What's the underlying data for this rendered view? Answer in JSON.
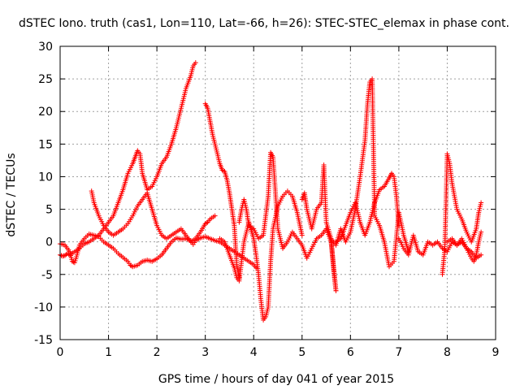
{
  "chart_data": {
    "type": "scatter",
    "title": "dSTEC Iono. truth (cas1, Lon=110, Lat=-66, h=26): STEC-STEC_elemax in phase cont.",
    "xlabel": "GPS time / hours of day 041 of year 2015",
    "ylabel": "dSTEC  / TECUs",
    "xlim": [
      0,
      9
    ],
    "ylim": [
      -15,
      30
    ],
    "xticks": [
      "0",
      "1",
      "2",
      "3",
      "4",
      "5",
      "6",
      "7",
      "8",
      "9"
    ],
    "yticks": [
      "-15",
      "-10",
      "-5",
      "0",
      "5",
      "10",
      "15",
      "20",
      "25",
      "30"
    ],
    "grid": true,
    "marker": "+",
    "color": "#ff0000",
    "series": [
      {
        "x": [
          0.0,
          0.1,
          0.2,
          0.25,
          0.3,
          0.35,
          0.4,
          0.5,
          0.6,
          0.7,
          0.8,
          0.9,
          1.0,
          1.1,
          1.2,
          1.3,
          1.4,
          1.45,
          1.5,
          1.6,
          1.7,
          1.8,
          1.9,
          2.0,
          2.1,
          2.2,
          2.3,
          2.4,
          2.5,
          2.6,
          2.7,
          2.75,
          2.8,
          2.9,
          3.0,
          3.1,
          3.2,
          3.3,
          3.4,
          3.5,
          3.6,
          3.7,
          3.8,
          3.9,
          4.0,
          4.05
        ],
        "y": [
          -0.3,
          -0.5,
          -1.5,
          -3.0,
          -3.2,
          -2.0,
          -0.5,
          0.5,
          1.2,
          1.0,
          0.8,
          0.0,
          -0.5,
          -1.0,
          -1.8,
          -2.4,
          -3.0,
          -3.6,
          -3.8,
          -3.6,
          -3.0,
          -2.8,
          -3.0,
          -2.6,
          -2.0,
          -1.0,
          0.0,
          0.6,
          0.4,
          0.5,
          0.2,
          -0.4,
          0.2,
          0.6,
          0.8,
          0.5,
          0.2,
          0.0,
          -0.5,
          -1.0,
          -1.5,
          -2.0,
          -2.5,
          -3.0,
          -3.5,
          -4.0
        ]
      },
      {
        "x": [
          0.0,
          0.05,
          0.1,
          0.15,
          0.2,
          0.3,
          0.4,
          0.5,
          0.6,
          0.7,
          0.8,
          0.9,
          1.0,
          1.1,
          1.2,
          1.3,
          1.4,
          1.5,
          1.55,
          1.6,
          1.65,
          1.7,
          1.8,
          1.9,
          2.0,
          2.1,
          2.2,
          2.3,
          2.4,
          2.5,
          2.6,
          2.7,
          2.75,
          2.8
        ],
        "y": [
          -2.0,
          -2.2,
          -2.1,
          -1.8,
          -2.0,
          -1.5,
          -1.0,
          -0.3,
          0.0,
          0.5,
          1.0,
          2.0,
          3.0,
          4.0,
          6.0,
          8.0,
          10.5,
          12.0,
          13.0,
          14.0,
          13.5,
          10.5,
          8.0,
          8.5,
          10.0,
          12.0,
          13.0,
          15.0,
          17.5,
          20.5,
          23.5,
          25.5,
          27.0,
          27.5
        ]
      },
      {
        "x": [
          0.65,
          0.7,
          0.8,
          0.9,
          1.0,
          1.1,
          1.2,
          1.3,
          1.4,
          1.5,
          1.6,
          1.7,
          1.8,
          1.9,
          2.0,
          2.1,
          2.2,
          2.3,
          2.4,
          2.5,
          2.6,
          2.7,
          2.8,
          2.9,
          3.0,
          3.05,
          3.1,
          3.2
        ],
        "y": [
          7.8,
          6.0,
          4.0,
          2.5,
          1.5,
          1.0,
          1.5,
          2.0,
          2.8,
          4.0,
          5.5,
          6.5,
          7.5,
          5.0,
          2.5,
          1.0,
          0.5,
          1.0,
          1.5,
          2.0,
          1.0,
          0.0,
          0.5,
          1.5,
          2.8,
          3.0,
          3.5,
          4.0
        ]
      },
      {
        "x": [
          3.0,
          3.05,
          3.1,
          3.15,
          3.2,
          3.25,
          3.3,
          3.35,
          3.4,
          3.45,
          3.5,
          3.55,
          3.6,
          3.65,
          3.7
        ],
        "y": [
          21.2,
          20.5,
          18.5,
          16.5,
          15.0,
          13.5,
          12.0,
          11.0,
          10.8,
          9.5,
          7.5,
          5.0,
          2.5,
          -3.5,
          -5.5
        ]
      },
      {
        "x": [
          3.3,
          3.4,
          3.5,
          3.6,
          3.65,
          3.7,
          3.75,
          3.8,
          3.9,
          4.0,
          4.05,
          4.1,
          4.15,
          4.2,
          4.25,
          4.3,
          4.35,
          4.4,
          4.5,
          4.6,
          4.7,
          4.8,
          4.9,
          5.0
        ],
        "y": [
          0.5,
          0.0,
          -2.0,
          -4.0,
          -5.5,
          -6.0,
          -3.0,
          0.0,
          3.0,
          0.5,
          -2.0,
          -5.0,
          -9.0,
          -12.0,
          -11.5,
          -10.0,
          -3.0,
          2.0,
          5.5,
          7.0,
          7.8,
          7.0,
          4.5,
          1.0
        ]
      },
      {
        "x": [
          3.7,
          3.75,
          3.8,
          3.85,
          3.9,
          4.0,
          4.1,
          4.2,
          4.3,
          4.35,
          4.4,
          4.5,
          4.6,
          4.7,
          4.8,
          4.9,
          5.0,
          5.1,
          5.2,
          5.3,
          5.4,
          5.5,
          5.6,
          5.7
        ],
        "y": [
          3.0,
          5.0,
          6.5,
          5.0,
          2.5,
          2.0,
          0.5,
          1.0,
          7.0,
          13.7,
          13.0,
          2.0,
          -1.0,
          0.0,
          1.5,
          0.5,
          -0.5,
          -2.5,
          -1.0,
          0.5,
          1.0,
          2.0,
          0.0,
          -7.5
        ]
      },
      {
        "x": [
          5.0,
          5.05,
          5.1,
          5.2,
          5.3,
          5.35,
          5.4,
          5.45,
          5.5,
          5.6,
          5.65,
          5.7
        ],
        "y": [
          6.5,
          7.5,
          5.0,
          2.0,
          5.0,
          5.5,
          6.0,
          11.8,
          3.0,
          0.5,
          -4.0,
          -7.5
        ]
      },
      {
        "x": [
          5.6,
          5.7,
          5.8,
          5.9,
          6.0,
          6.1,
          6.2,
          6.3,
          6.35,
          6.4,
          6.45,
          6.5,
          6.6,
          6.7,
          6.8,
          6.9,
          7.0,
          7.1,
          7.2
        ],
        "y": [
          0.5,
          -0.5,
          2.0,
          0.0,
          1.5,
          5.0,
          10.0,
          15.5,
          21.0,
          24.5,
          25.0,
          4.0,
          2.5,
          0.0,
          -3.8,
          -3.0,
          4.5,
          1.0,
          -1.5
        ]
      },
      {
        "x": [
          5.7,
          5.8,
          5.9,
          6.0,
          6.1,
          6.2,
          6.3,
          6.4,
          6.5,
          6.6,
          6.7,
          6.8,
          6.85,
          6.9,
          6.95,
          7.0
        ],
        "y": [
          0.0,
          0.5,
          2.5,
          4.5,
          6.0,
          3.0,
          1.0,
          3.0,
          6.0,
          8.0,
          8.5,
          9.8,
          10.5,
          10.0,
          7.0,
          2.5
        ]
      },
      {
        "x": [
          7.0,
          7.1,
          7.2,
          7.3,
          7.4,
          7.5,
          7.6,
          7.7,
          7.8,
          7.9,
          8.0,
          8.1,
          8.2,
          8.3,
          8.4,
          8.5,
          8.6,
          8.7
        ],
        "y": [
          0.5,
          -1.0,
          -2.0,
          1.0,
          -1.5,
          -2.0,
          0.0,
          -0.5,
          0.0,
          -1.0,
          -1.5,
          0.0,
          -0.5,
          0.5,
          -1.0,
          -1.5,
          -2.5,
          -2.0
        ]
      },
      {
        "x": [
          7.9,
          7.95,
          8.0,
          8.05,
          8.1,
          8.2,
          8.3,
          8.4,
          8.5,
          8.6,
          8.65,
          8.7
        ],
        "y": [
          -5.0,
          -1.0,
          13.5,
          12.0,
          9.0,
          5.0,
          3.5,
          1.5,
          0.0,
          2.0,
          4.5,
          6.0
        ]
      },
      {
        "x": [
          8.0,
          8.1,
          8.2,
          8.3,
          8.4,
          8.5,
          8.55,
          8.6,
          8.65,
          8.7
        ],
        "y": [
          0.0,
          0.5,
          -0.5,
          0.0,
          -1.0,
          -2.5,
          -3.0,
          -2.0,
          0.0,
          1.5
        ]
      }
    ]
  }
}
